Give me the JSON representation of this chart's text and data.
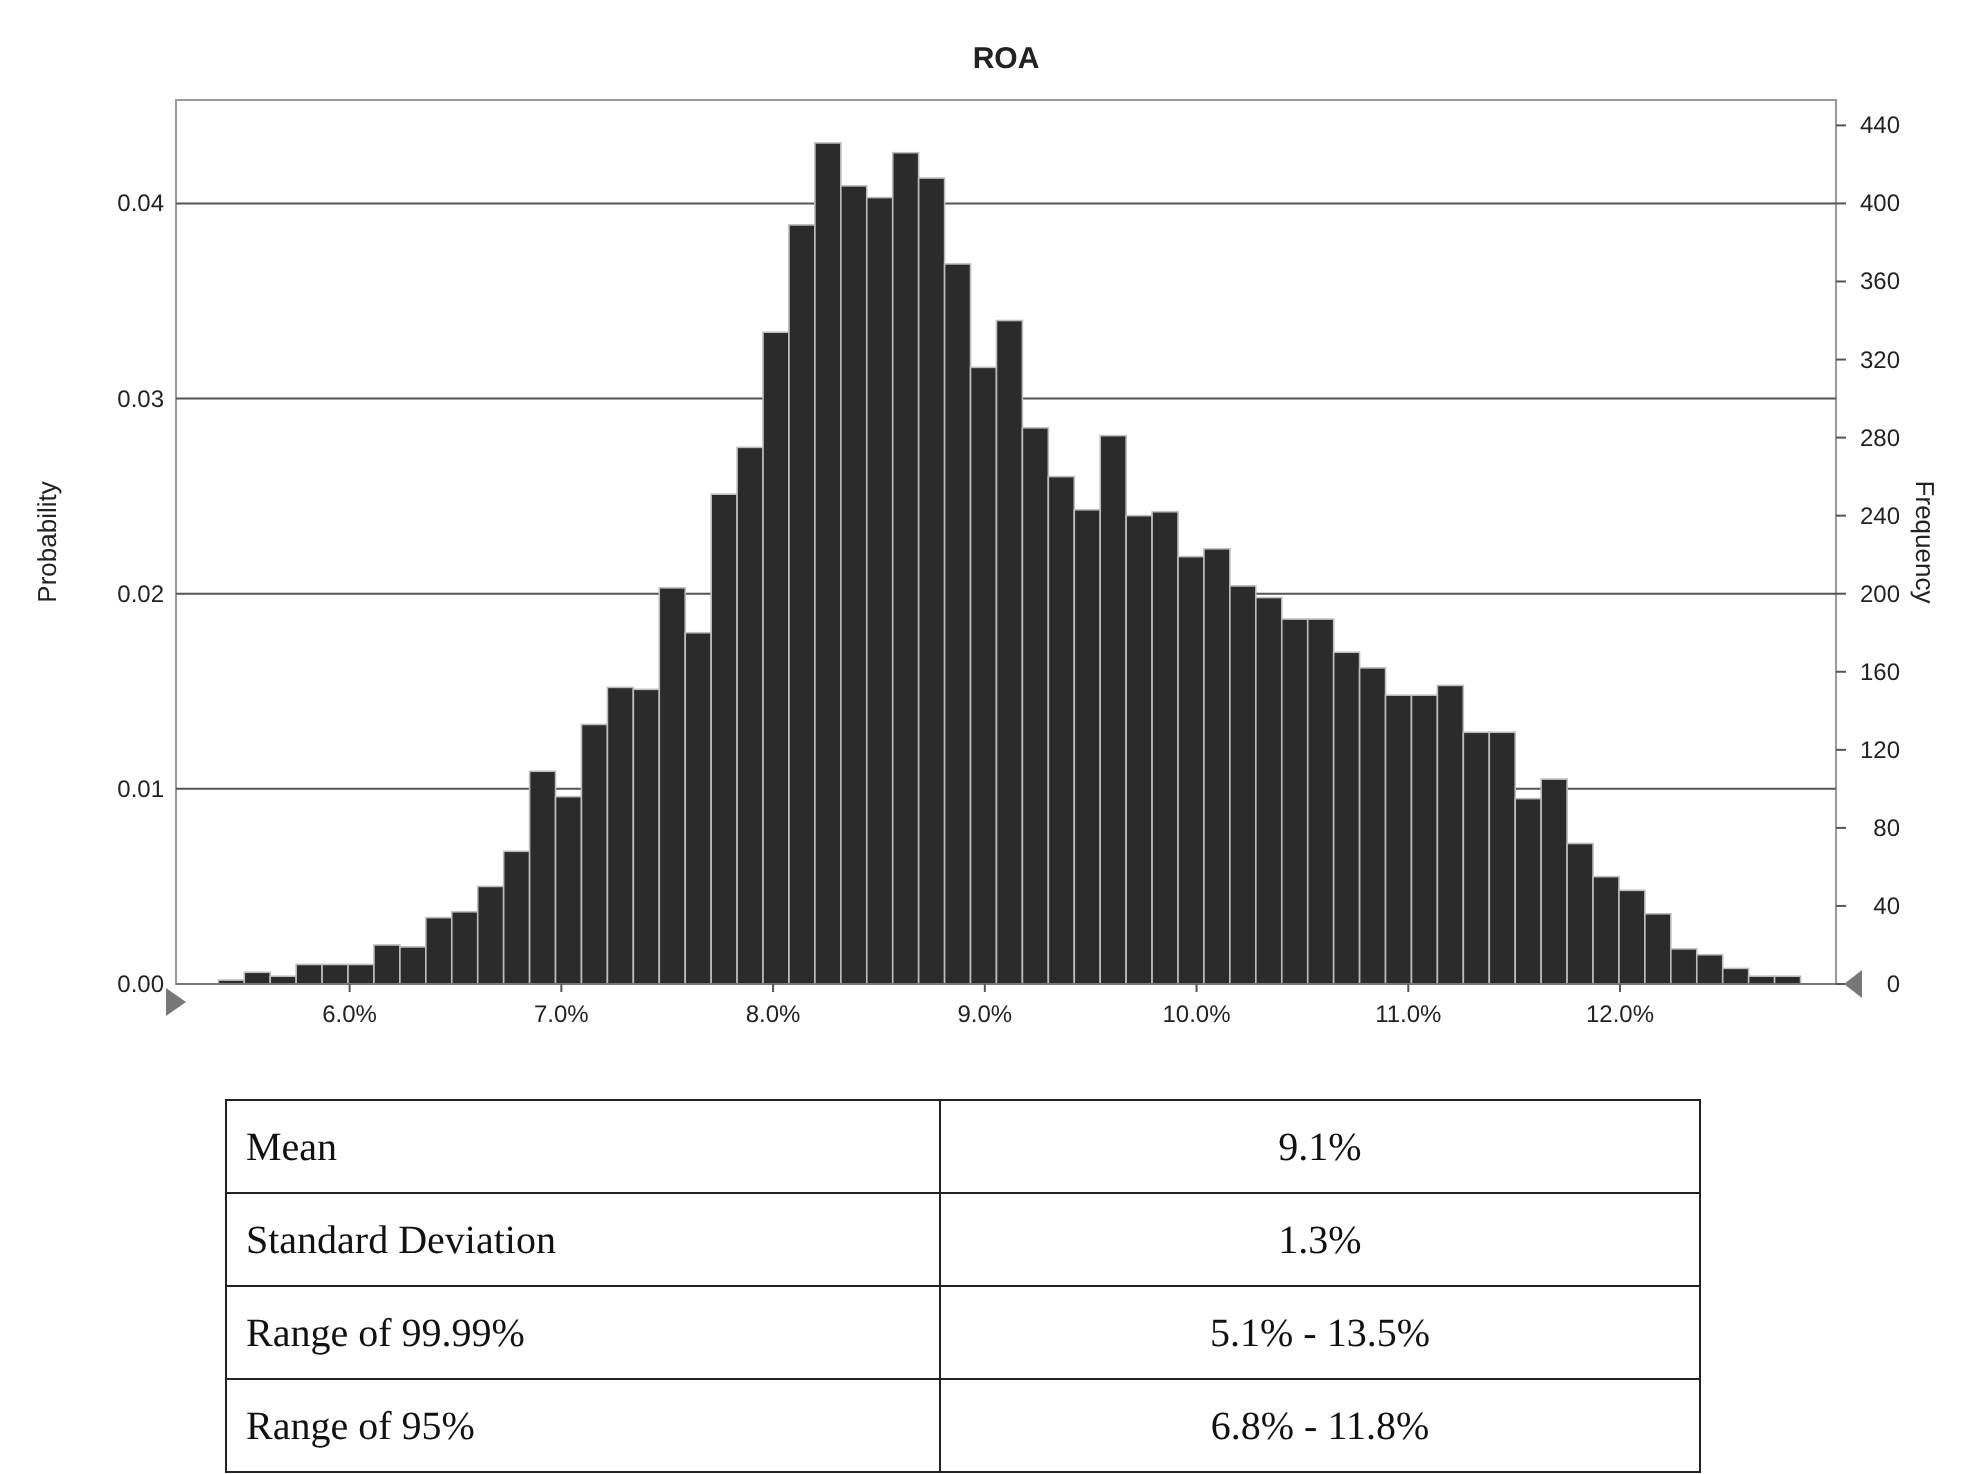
{
  "chart_data": {
    "type": "histogram",
    "title": "ROA",
    "ylabel": "Probability",
    "y2label": "Frequency",
    "bins": [
      5.38,
      5.5025,
      5.625,
      5.7475,
      5.87,
      5.9925,
      6.115,
      6.2375,
      6.36,
      6.4825,
      6.605,
      6.7275,
      6.85,
      6.9725,
      7.095,
      7.2175,
      7.34,
      7.4625,
      7.585,
      7.7075,
      7.83,
      7.9525,
      8.075,
      8.1975,
      8.32,
      8.4425,
      8.565,
      8.6875,
      8.81,
      8.9325,
      9.055,
      9.1775,
      9.3,
      9.4225,
      9.545,
      9.6675,
      9.79,
      9.9125,
      10.035,
      10.1575,
      10.28,
      10.4025,
      10.525,
      10.6475,
      10.77,
      10.8925,
      11.015,
      11.1375,
      11.26,
      11.3825,
      11.505,
      11.6275,
      11.75,
      11.8725,
      11.995,
      12.1175,
      12.24,
      12.3625,
      12.485,
      12.6075,
      12.73,
      12.8525
    ],
    "values": [
      0.0002,
      0.0006,
      0.0004,
      0.001,
      0.001,
      0.001,
      0.002,
      0.0019,
      0.0034,
      0.0037,
      0.005,
      0.0068,
      0.0109,
      0.0096,
      0.0133,
      0.0152,
      0.0151,
      0.0203,
      0.018,
      0.0251,
      0.0275,
      0.0334,
      0.0389,
      0.0431,
      0.0409,
      0.0403,
      0.0426,
      0.0413,
      0.0369,
      0.0316,
      0.034,
      0.0285,
      0.026,
      0.0243,
      0.0281,
      0.024,
      0.0242,
      0.0219,
      0.0223,
      0.0204,
      0.0198,
      0.0187,
      0.0187,
      0.017,
      0.0162,
      0.0148,
      0.0148,
      0.0153,
      0.0129,
      0.0129,
      0.0095,
      0.0105,
      0.0072,
      0.0055,
      0.0048,
      0.0036,
      0.0018,
      0.0015,
      0.0008,
      0.0004,
      0.0004
    ],
    "color": "#2b2b2b",
    "xlim": [
      5.18,
      13.02
    ],
    "xticks": [
      {
        "value": 6,
        "label": "6.0%"
      },
      {
        "value": 7,
        "label": "7.0%"
      },
      {
        "value": 8,
        "label": "8.0%"
      },
      {
        "value": 9,
        "label": "9.0%"
      },
      {
        "value": 10,
        "label": "10.0%"
      },
      {
        "value": 11,
        "label": "11.0%"
      },
      {
        "value": 12,
        "label": "12.0%"
      }
    ],
    "ylim": [
      0,
      0.0453
    ],
    "yticks": [
      {
        "value": 0,
        "label": "0.00"
      },
      {
        "value": 0.01,
        "label": "0.01"
      },
      {
        "value": 0.02,
        "label": "0.02"
      },
      {
        "value": 0.03,
        "label": "0.03"
      },
      {
        "value": 0.04,
        "label": "0.04"
      }
    ],
    "y2lim": [
      0,
      453
    ],
    "y2ticks": [
      0,
      40,
      80,
      120,
      160,
      200,
      240,
      280,
      320,
      360,
      400,
      440
    ],
    "grid": "y",
    "annotations": [
      "Mean",
      "9.1%",
      "Standard Deviation",
      "1.3%",
      "Range of 99.99%",
      "5.1% - 13.5%",
      "Range of 95%",
      "6.8% - 11.8%"
    ]
  }
}
